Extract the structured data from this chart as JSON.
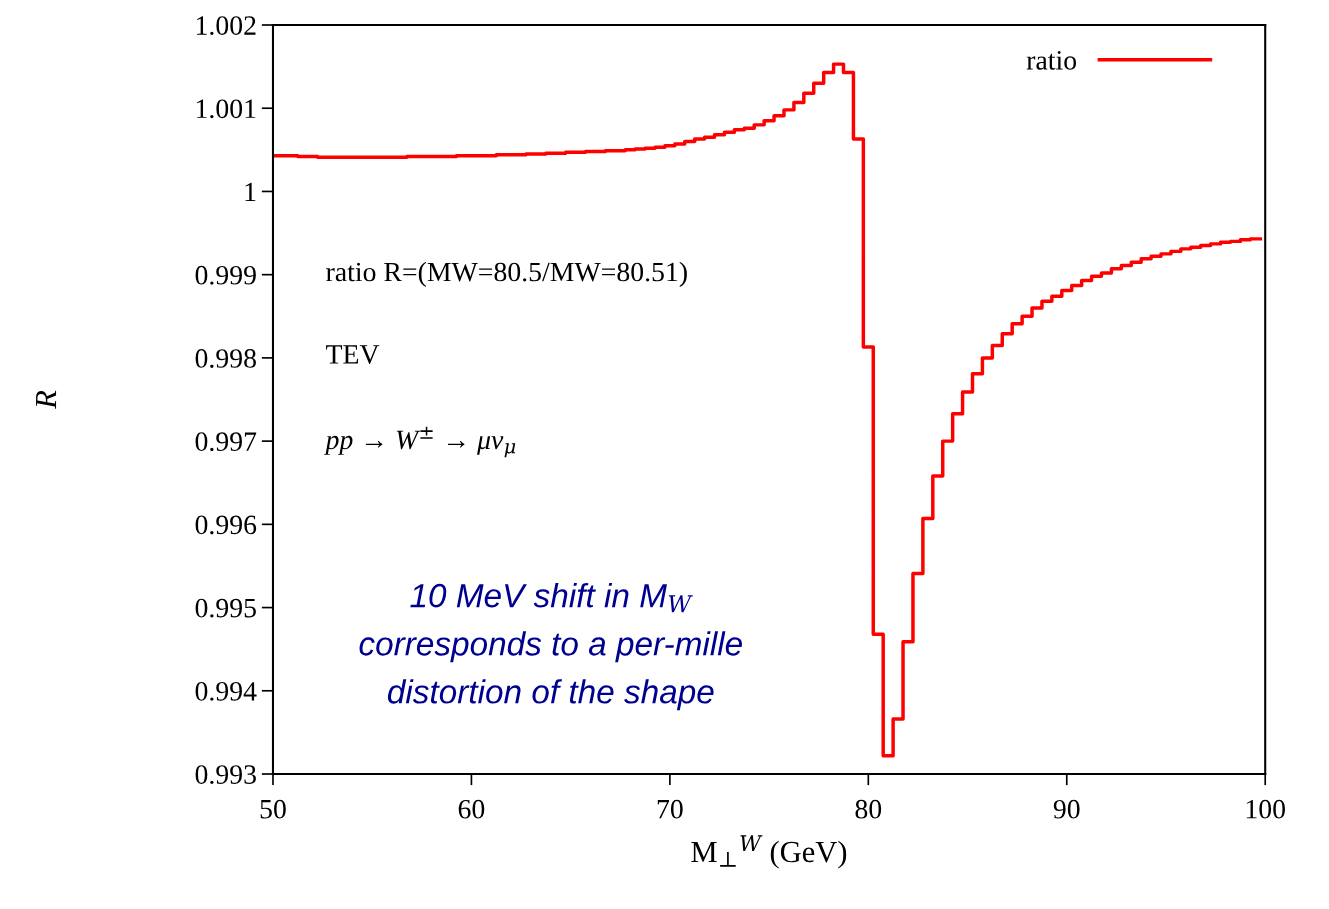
{
  "chart_data": {
    "type": "step",
    "xlabel": "M$_{⊥}$$^{W}$ (GeV)",
    "ylabel": "R",
    "x": [
      50,
      50.5,
      51,
      51.5,
      52,
      52.5,
      53,
      53.5,
      54,
      54.5,
      55,
      55.5,
      56,
      56.5,
      57,
      57.5,
      58,
      58.5,
      59,
      59.5,
      60,
      60.5,
      61,
      61.5,
      62,
      62.5,
      63,
      63.5,
      64,
      64.5,
      65,
      65.5,
      66,
      66.5,
      67,
      67.5,
      68,
      68.5,
      69,
      69.5,
      70,
      70.5,
      71,
      71.5,
      72,
      72.5,
      73,
      73.5,
      74,
      74.5,
      75,
      75.5,
      76,
      76.5,
      77,
      77.5,
      78,
      78.5,
      79,
      79.5,
      80,
      80.5,
      81,
      81.5,
      82,
      82.5,
      83,
      83.5,
      84,
      84.5,
      85,
      85.5,
      86,
      86.5,
      87,
      87.5,
      88,
      88.5,
      89,
      89.5,
      90,
      90.5,
      91,
      91.5,
      92,
      92.5,
      93,
      93.5,
      94,
      94.5,
      95,
      95.5,
      96,
      96.5,
      97,
      97.5,
      98,
      98.5,
      99,
      99.5
    ],
    "series": [
      {
        "name": "ratio",
        "color": "#ff0000",
        "values": [
          1.00043,
          1.00043,
          1.00043,
          1.00042,
          1.00042,
          1.00041,
          1.00041,
          1.00041,
          1.00041,
          1.00041,
          1.00041,
          1.00041,
          1.00041,
          1.00041,
          1.00042,
          1.00042,
          1.00042,
          1.00042,
          1.00042,
          1.00043,
          1.00043,
          1.00043,
          1.00043,
          1.00044,
          1.00044,
          1.00044,
          1.00045,
          1.00045,
          1.00046,
          1.00046,
          1.00047,
          1.00047,
          1.00048,
          1.00048,
          1.00049,
          1.00049,
          1.0005,
          1.00051,
          1.00052,
          1.00053,
          1.00055,
          1.00057,
          1.0006,
          1.00063,
          1.00065,
          1.00068,
          1.00071,
          1.00074,
          1.00076,
          1.0008,
          1.00085,
          1.00091,
          1.00098,
          1.00107,
          1.00118,
          1.0013,
          1.00143,
          1.00153,
          1.00143,
          1.00063,
          0.99813,
          0.99468,
          0.99322,
          0.99366,
          0.99459,
          0.99541,
          0.99607,
          0.99658,
          0.997,
          0.99733,
          0.99759,
          0.99781,
          0.998,
          0.99815,
          0.99829,
          0.99841,
          0.9985,
          0.9986,
          0.99868,
          0.99874,
          0.99881,
          0.99887,
          0.99893,
          0.99898,
          0.99902,
          0.99907,
          0.99911,
          0.99915,
          0.99919,
          0.99922,
          0.99925,
          0.99928,
          0.99931,
          0.99933,
          0.99935,
          0.99937,
          0.99939,
          0.9994,
          0.99942,
          0.99943
        ]
      }
    ],
    "xlim": [
      50,
      100
    ],
    "xticks": [
      50,
      60,
      70,
      80,
      90,
      100
    ],
    "ylim": [
      0.993,
      1.002
    ],
    "yticks": [
      0.993,
      0.994,
      0.995,
      0.996,
      0.997,
      0.998,
      0.999,
      1,
      1.001,
      1.002
    ],
    "legend": "top right",
    "annotations": [
      "ratio R=(MW=80.5/MW=80.51)",
      "TEV",
      "pp → W$^{±}$ → μν$_{μ}$",
      "10 MeV shift in M$_{W}$\ncorresponds to a per-mille\ndistortion of the shape"
    ]
  }
}
